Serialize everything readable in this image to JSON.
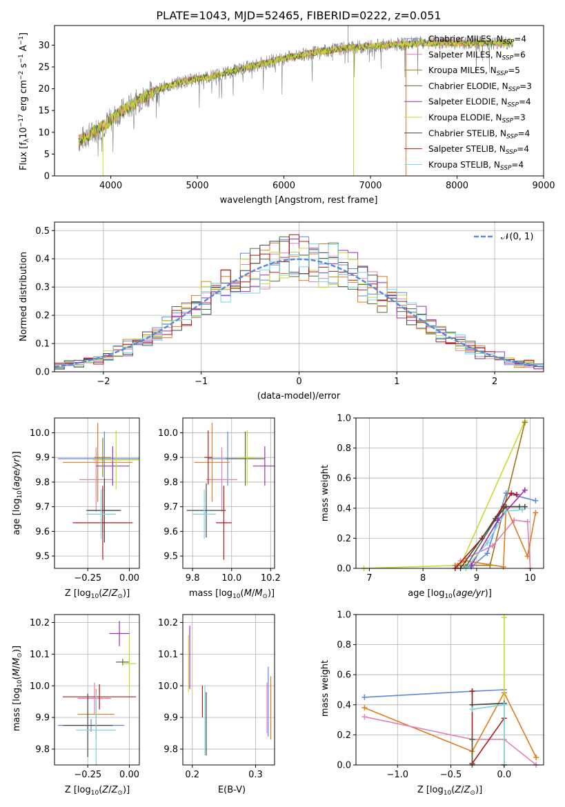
{
  "figure": {
    "title": "PLATE=1043, MJD=52465, FIBERID=0222, z=0.051"
  },
  "colors": {
    "chabrier_miles": "#5b87d9",
    "salpeter_miles": "#e27fb8",
    "kroupa_miles": "#a07214",
    "chabrier_elodie": "#4f6b3b",
    "salpeter_elodie": "#9b2cb5",
    "kroupa_elodie": "#c7d930",
    "chabrier_stelib": "#444444",
    "salpeter_stelib": "#b01518",
    "kroupa_stelib": "#77d4df",
    "orange": "#e07a1a",
    "normal": "#5b87d9"
  },
  "chart_data": [
    {
      "id": "spectrum",
      "type": "line",
      "title": "PLATE=1043, MJD=52465, FIBERID=0222, z=0.051",
      "xlabel": "wavelength [Angstrom, rest frame]",
      "ylabel": "Flux [f_λ 10^-17 erg cm^-2 s^-1 A^-1]",
      "xlim": [
        3350,
        9000
      ],
      "ylim": [
        0,
        34.5
      ],
      "xticks": [
        "4000",
        "5000",
        "6000",
        "7000",
        "8000",
        "9000"
      ],
      "yticks": [
        "0",
        "5",
        "10",
        "15",
        "20",
        "25",
        "30"
      ],
      "x_range_data": [
        3630,
        8650
      ],
      "continuum": [
        [
          3630,
          8
        ],
        [
          3800,
          10
        ],
        [
          3950,
          12
        ],
        [
          4100,
          14.5
        ],
        [
          4300,
          17
        ],
        [
          4500,
          19.5
        ],
        [
          4800,
          21.5
        ],
        [
          5200,
          23
        ],
        [
          5600,
          25
        ],
        [
          6000,
          27
        ],
        [
          6400,
          28.5
        ],
        [
          6800,
          29.5
        ],
        [
          7200,
          30
        ],
        [
          7600,
          30.5
        ],
        [
          8000,
          30.5
        ],
        [
          8400,
          30.5
        ],
        [
          8650,
          30.5
        ]
      ],
      "legend": [
        {
          "label": "Chabrier MILES, N",
          "sub": "SSP",
          "tail": "=4"
        },
        {
          "label": "Salpeter MILES, N",
          "sub": "SSP",
          "tail": "=6"
        },
        {
          "label": "Kroupa MILES, N",
          "sub": "SSP",
          "tail": "=5"
        },
        {
          "label": "Chabrier ELODIE, N",
          "sub": "SSP",
          "tail": "=3"
        },
        {
          "label": "Salpeter ELODIE, N",
          "sub": "SSP",
          "tail": "=4"
        },
        {
          "label": "Kroupa ELODIE, N",
          "sub": "SSP",
          "tail": "=3"
        },
        {
          "label": "Chabrier STELIB, N",
          "sub": "SSP",
          "tail": "=4"
        },
        {
          "label": "Salpeter STELIB, N",
          "sub": "SSP",
          "tail": "=4"
        },
        {
          "label": "Kroupa STELIB, N",
          "sub": "SSP",
          "tail": "=4"
        }
      ],
      "legend_placement": "top-right"
    },
    {
      "id": "residuals",
      "type": "bar",
      "xlabel": "(data-model)/error",
      "ylabel": "Normed distribution",
      "xlim": [
        -2.5,
        2.5
      ],
      "ylim": [
        0,
        0.53
      ],
      "xticks": [
        "−2",
        "−1",
        "0",
        "1",
        "2"
      ],
      "yticks": [
        "0.0",
        "0.1",
        "0.2",
        "0.3",
        "0.4",
        "0.5"
      ],
      "bin_width": 0.1,
      "legend": [
        {
          "label": "𝒩(0, 1)"
        }
      ],
      "grid": true
    },
    {
      "id": "age_vs_Z",
      "type": "scatter",
      "xlabel": "Z [log10(Z/Z⊙)]",
      "ylabel": "age [log10(age/yr)]",
      "xlim": [
        -0.45,
        0.06
      ],
      "ylim": [
        9.45,
        10.06
      ],
      "xticks": [
        "−0.25",
        "0.00"
      ],
      "yticks": [
        "9.5",
        "9.6",
        "9.7",
        "9.8",
        "9.9",
        "10.0"
      ],
      "points": [
        {
          "x": -0.15,
          "y": 9.895,
          "xerr": 0.28,
          "yerr": 0.11,
          "c": "chabrier_miles"
        },
        {
          "x": -0.2,
          "y": 9.81,
          "xerr": 0.1,
          "yerr": 0.13,
          "c": "salpeter_miles"
        },
        {
          "x": -0.19,
          "y": 9.88,
          "xerr": 0.21,
          "yerr": 0.16,
          "c": "orange"
        },
        {
          "x": -0.16,
          "y": 9.685,
          "xerr": 0.1,
          "yerr": 0.09,
          "c": "chabrier_elodie"
        },
        {
          "x": -0.1,
          "y": 9.865,
          "xerr": 0.1,
          "yerr": 0.08,
          "c": "salpeter_elodie"
        },
        {
          "x": -0.08,
          "y": 9.89,
          "xerr": 0.14,
          "yerr": 0.12,
          "c": "kroupa_elodie"
        },
        {
          "x": -0.15,
          "y": 9.685,
          "xerr": 0.1,
          "yerr": 0.13,
          "c": "chabrier_stelib"
        },
        {
          "x": -0.16,
          "y": 9.635,
          "xerr": 0.18,
          "yerr": 0.15,
          "c": "salpeter_stelib"
        },
        {
          "x": -0.17,
          "y": 9.67,
          "xerr": 0.09,
          "yerr": 0.1,
          "c": "kroupa_stelib"
        },
        {
          "x": -0.16,
          "y": 9.9,
          "xerr": 0.05,
          "yerr": 0.08,
          "c": "kroupa_miles"
        }
      ],
      "grid": true
    },
    {
      "id": "age_vs_mass",
      "type": "scatter",
      "xlabel": "mass [log10(M/M⊙)]",
      "ylabel": "",
      "xlim": [
        9.75,
        10.22
      ],
      "ylim": [
        9.45,
        10.06
      ],
      "xticks": [
        "9.8",
        "10.0",
        "10.2"
      ],
      "yticks": [
        "9.5",
        "9.6",
        "9.7",
        "9.8",
        "9.9",
        "10.0"
      ],
      "points": [
        {
          "x": 9.98,
          "y": 9.895,
          "xerr": 0.1,
          "yerr": 0.11,
          "c": "chabrier_miles"
        },
        {
          "x": 9.95,
          "y": 9.81,
          "xerr": 0.08,
          "yerr": 0.13,
          "c": "salpeter_miles"
        },
        {
          "x": 9.9,
          "y": 9.88,
          "xerr": 0.09,
          "yerr": 0.16,
          "c": "orange"
        },
        {
          "x": 10.07,
          "y": 9.895,
          "xerr": 0.1,
          "yerr": 0.11,
          "c": "chabrier_elodie"
        },
        {
          "x": 10.17,
          "y": 9.865,
          "xerr": 0.06,
          "yerr": 0.08,
          "c": "salpeter_elodie"
        },
        {
          "x": 10.08,
          "y": 9.9,
          "xerr": 0.04,
          "yerr": 0.11,
          "c": "kroupa_elodie"
        },
        {
          "x": 9.87,
          "y": 9.685,
          "xerr": 0.1,
          "yerr": 0.11,
          "c": "chabrier_stelib"
        },
        {
          "x": 9.96,
          "y": 9.635,
          "xerr": 0.04,
          "yerr": 0.15,
          "c": "salpeter_stelib"
        },
        {
          "x": 9.86,
          "y": 9.67,
          "xerr": 0.06,
          "yerr": 0.1,
          "c": "kroupa_stelib"
        },
        {
          "x": 9.88,
          "y": 9.9,
          "xerr": 0.02,
          "yerr": 0.11,
          "c": "salpeter_stelib2"
        }
      ],
      "grid": true
    },
    {
      "id": "weight_vs_age",
      "type": "line",
      "xlabel": "age [log10(age/yr)]",
      "ylabel": "mass weight",
      "xlim": [
        6.75,
        10.25
      ],
      "ylim": [
        0,
        1.0
      ],
      "xticks": [
        "7",
        "8",
        "9",
        "10"
      ],
      "yticks": [
        "0.0",
        "0.2",
        "0.4",
        "0.6",
        "0.8",
        "1.0"
      ],
      "series": [
        {
          "c": "kroupa_elodie",
          "points": [
            [
              6.9,
              0.0
            ],
            [
              8.7,
              0.02
            ],
            [
              9.9,
              0.98
            ]
          ]
        },
        {
          "c": "kroupa_miles",
          "points": [
            [
              8.65,
              0.02
            ],
            [
              9.25,
              0.02
            ],
            [
              9.9,
              0.97
            ]
          ]
        },
        {
          "c": "chabrier_miles",
          "points": [
            [
              8.9,
              0.01
            ],
            [
              9.2,
              0.1
            ],
            [
              9.55,
              0.5
            ],
            [
              10.1,
              0.45
            ]
          ]
        },
        {
          "c": "salpeter_miles",
          "points": [
            [
              8.7,
              0.05
            ],
            [
              9.3,
              0.15
            ],
            [
              9.7,
              0.32
            ],
            [
              9.95,
              0.31
            ],
            [
              10.0,
              0.0
            ]
          ]
        },
        {
          "c": "orange",
          "points": [
            [
              8.6,
              0.02
            ],
            [
              8.8,
              0.05
            ],
            [
              9.5,
              0.01
            ],
            [
              9.55,
              0.41
            ],
            [
              9.95,
              0.08
            ],
            [
              10.1,
              0.37
            ]
          ]
        },
        {
          "c": "salpeter_elodie",
          "points": [
            [
              8.9,
              0.02
            ],
            [
              9.4,
              0.32
            ],
            [
              9.9,
              0.52
            ]
          ]
        },
        {
          "c": "chabrier_elodie",
          "points": [
            [
              8.8,
              0.01
            ],
            [
              9.5,
              0.41
            ],
            [
              9.8,
              0.41
            ]
          ]
        },
        {
          "c": "salpeter_stelib",
          "points": [
            [
              8.6,
              0.0
            ],
            [
              9.1,
              0.2
            ],
            [
              9.65,
              0.5
            ],
            [
              9.75,
              0.49
            ]
          ]
        },
        {
          "c": "chabrier_stelib",
          "points": [
            [
              8.7,
              0.0
            ],
            [
              9.35,
              0.33
            ],
            [
              9.55,
              0.41
            ],
            [
              9.9,
              0.41
            ]
          ]
        },
        {
          "c": "kroupa_stelib",
          "points": [
            [
              8.8,
              0.0
            ],
            [
              9.2,
              0.17
            ],
            [
              9.55,
              0.38
            ],
            [
              9.85,
              0.39
            ]
          ]
        }
      ],
      "grid": true
    },
    {
      "id": "mass_vs_Z",
      "type": "scatter",
      "xlabel": "Z [log10(Z/Z⊙)]",
      "ylabel": "mass [log10(M/M⊙)]",
      "xlim": [
        -0.45,
        0.06
      ],
      "ylim": [
        9.75,
        10.225
      ],
      "xticks": [
        "−0.25",
        "0.00"
      ],
      "yticks": [
        "9.8",
        "9.9",
        "10.0",
        "10.1",
        "10.2"
      ],
      "points": [
        {
          "x": -0.23,
          "y": 9.875,
          "xerr": 0.2,
          "yerr": 0.02,
          "c": "chabrier_miles"
        },
        {
          "x": -0.21,
          "y": 9.96,
          "xerr": 0.1,
          "yerr": 0.05,
          "c": "salpeter_miles"
        },
        {
          "x": -0.2,
          "y": 9.91,
          "xerr": 0.11,
          "yerr": 0.08,
          "c": "orange"
        },
        {
          "x": -0.18,
          "y": 9.965,
          "xerr": 0.22,
          "yerr": 0.04,
          "c": "salpeter_stelib"
        },
        {
          "x": -0.04,
          "y": 10.075,
          "xerr": 0.04,
          "yerr": 0.01,
          "c": "chabrier_elodie"
        },
        {
          "x": -0.06,
          "y": 10.165,
          "xerr": 0.06,
          "yerr": 0.04,
          "c": "salpeter_elodie"
        },
        {
          "x": 0.0,
          "y": 10.07,
          "xerr": 0.04,
          "yerr": 0.09,
          "c": "kroupa_elodie"
        },
        {
          "x": -0.25,
          "y": 9.875,
          "xerr": 0.15,
          "yerr": 0.1,
          "c": "chabrier_stelib"
        },
        {
          "x": -0.2,
          "y": 9.86,
          "xerr": 0.12,
          "yerr": 0.12,
          "c": "kroupa_stelib"
        }
      ],
      "grid": true
    },
    {
      "id": "mass_vs_ebv",
      "type": "scatter",
      "xlabel": "E(B-V)",
      "ylabel": "",
      "xlim": [
        0.185,
        0.33
      ],
      "ylim": [
        9.75,
        10.225
      ],
      "xticks": [
        "0.2",
        "0.3"
      ],
      "yticks": [
        "9.8",
        "9.9",
        "10.0",
        "10.1",
        "10.2"
      ],
      "points": [
        {
          "x": 0.196,
          "y": 10.09,
          "yerr": 0.1,
          "c": "salpeter_elodie"
        },
        {
          "x": 0.194,
          "y": 10.07,
          "yerr": 0.09,
          "c": "kroupa_elodie"
        },
        {
          "x": 0.216,
          "y": 9.95,
          "yerr": 0.05,
          "c": "salpeter_stelib"
        },
        {
          "x": 0.222,
          "y": 9.88,
          "yerr": 0.1,
          "c": "chabrier_stelib"
        },
        {
          "x": 0.22,
          "y": 9.89,
          "yerr": 0.11,
          "c": "kroupa_stelib"
        },
        {
          "x": 0.318,
          "y": 9.93,
          "yerr": 0.08,
          "c": "salpeter_miles"
        },
        {
          "x": 0.32,
          "y": 9.95,
          "yerr": 0.11,
          "c": "chabrier_miles"
        },
        {
          "x": 0.324,
          "y": 9.93,
          "yerr": 0.1,
          "c": "orange"
        }
      ],
      "grid": true
    },
    {
      "id": "weight_vs_Z",
      "type": "line",
      "xlabel": "Z [log10(Z/Z⊙)]",
      "ylabel": "mass weight",
      "xlim": [
        -1.39,
        0.37
      ],
      "ylim": [
        0,
        1.0
      ],
      "xticks": [
        "−1.0",
        "−0.5",
        "0.0"
      ],
      "yticks": [
        "0.0",
        "0.2",
        "0.4",
        "0.6",
        "0.8",
        "1.0"
      ],
      "series": [
        {
          "c": "chabrier_miles",
          "points": [
            [
              -1.31,
              0.45
            ],
            [
              -0.3,
              0.49
            ],
            [
              0.0,
              0.5
            ]
          ]
        },
        {
          "c": "orange",
          "points": [
            [
              -1.31,
              0.38
            ],
            [
              -0.3,
              0.09
            ],
            [
              0.0,
              0.48
            ],
            [
              0.3,
              0.05
            ]
          ]
        },
        {
          "c": "salpeter_miles",
          "points": [
            [
              -1.31,
              0.32
            ],
            [
              -0.3,
              0.17
            ],
            [
              0.0,
              0.17
            ],
            [
              0.3,
              0.0
            ]
          ]
        },
        {
          "c": "kroupa_elodie",
          "points": [
            [
              0.0,
              0.0
            ],
            [
              0.0,
              0.98
            ]
          ]
        },
        {
          "c": "salpeter_stelib",
          "points": [
            [
              -0.3,
              0.49
            ],
            [
              -0.3,
              0.01
            ],
            [
              0.0,
              0.31
            ]
          ]
        },
        {
          "c": "chabrier_stelib",
          "points": [
            [
              -0.3,
              0.4
            ],
            [
              0.0,
              0.41
            ],
            [
              0.0,
              0.0
            ]
          ]
        },
        {
          "c": "kroupa_stelib",
          "points": [
            [
              -0.3,
              0.37
            ],
            [
              0.0,
              0.4
            ],
            [
              0.0,
              0.0
            ]
          ]
        },
        {
          "c": "chabrier_elodie",
          "points": [
            [
              -0.3,
              0.17
            ],
            [
              -0.3,
              0.0
            ]
          ]
        }
      ],
      "grid": true
    }
  ]
}
